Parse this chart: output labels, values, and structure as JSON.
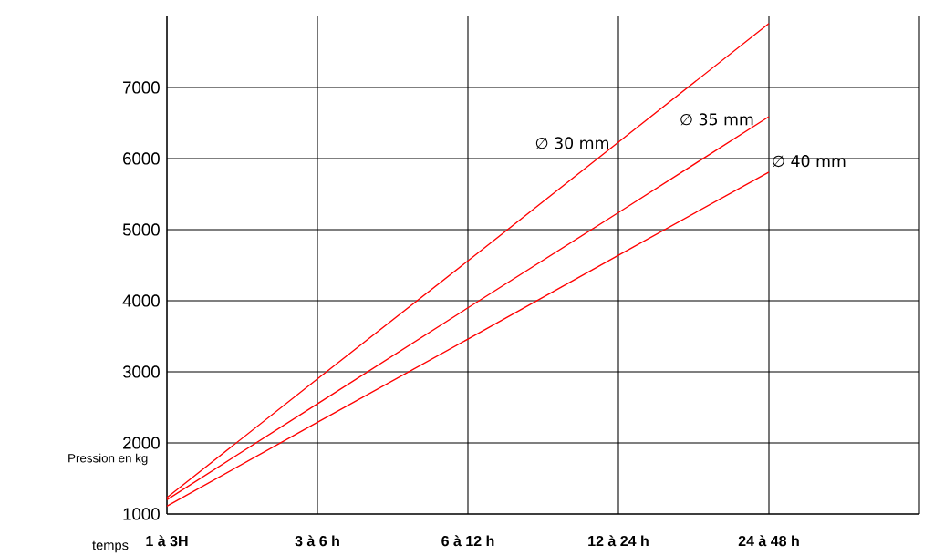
{
  "chart_data": {
    "type": "line",
    "xlabel": "temps",
    "ylabel": "Pression en kg",
    "categories": [
      "1 à 3H",
      "3 à 6 h",
      "6 à 12 h",
      "12 à 24 h",
      "24 à 48 h"
    ],
    "ylim": [
      1000,
      8000
    ],
    "yticks": [
      1000,
      2000,
      3000,
      4000,
      5000,
      6000,
      7000
    ],
    "grid": true,
    "legend": false,
    "marker": "none",
    "line_style": "solid",
    "series": [
      {
        "name": "∅ 30 mm",
        "color": "#ff0000",
        "values": [
          1230,
          2900,
          4560,
          6230,
          7900
        ]
      },
      {
        "name": "∅ 35 mm",
        "color": "#ff0000",
        "values": [
          1200,
          2550,
          3900,
          5240,
          6590
        ]
      },
      {
        "name": "∅ 40 mm",
        "color": "#ff0000",
        "values": [
          1110,
          2290,
          3460,
          4640,
          5810
        ]
      }
    ]
  }
}
